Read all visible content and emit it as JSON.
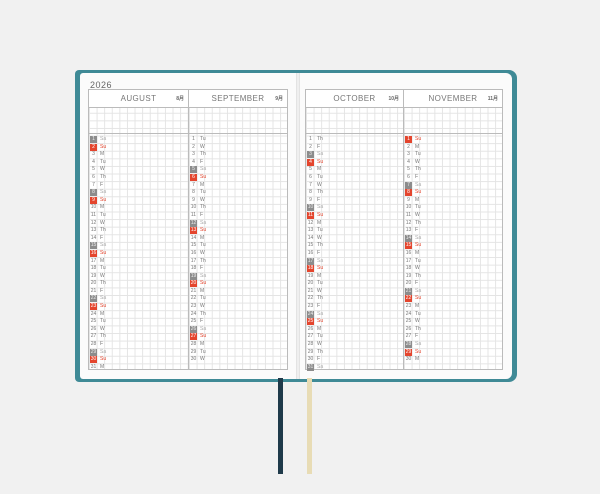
{
  "year": "2026",
  "colors": {
    "cover": "#3f8a96",
    "saturday": "#8c8c8c",
    "sunday": "#e4452d",
    "ribbon_left": "#1f3a4a",
    "ribbon_right": "#e8dcb5"
  },
  "months": [
    {
      "name": "AUGUST",
      "kanji": "8月",
      "days": [
        "Sa",
        "Su",
        "M",
        "Tu",
        "W",
        "Th",
        "F",
        "Sa",
        "Su",
        "M",
        "Tu",
        "W",
        "Th",
        "F",
        "Sa",
        "Su",
        "M",
        "Tu",
        "W",
        "Th",
        "F",
        "Sa",
        "Su",
        "M",
        "Tu",
        "W",
        "Th",
        "F",
        "Sa",
        "Su",
        "M"
      ]
    },
    {
      "name": "SEPTEMBER",
      "kanji": "9月",
      "days": [
        "Tu",
        "W",
        "Th",
        "F",
        "Sa",
        "Su",
        "M",
        "Tu",
        "W",
        "Th",
        "F",
        "Sa",
        "Su",
        "M",
        "Tu",
        "W",
        "Th",
        "F",
        "Sa",
        "Su",
        "M",
        "Tu",
        "W",
        "Th",
        "F",
        "Sa",
        "Su",
        "M",
        "Tu",
        "W"
      ]
    },
    {
      "name": "OCTOBER",
      "kanji": "10月",
      "days": [
        "Th",
        "F",
        "Sa",
        "Su",
        "M",
        "Tu",
        "W",
        "Th",
        "F",
        "Sa",
        "Su",
        "M",
        "Tu",
        "W",
        "Th",
        "F",
        "Sa",
        "Su",
        "M",
        "Tu",
        "W",
        "Th",
        "F",
        "Sa",
        "Su",
        "M",
        "Tu",
        "W",
        "Th",
        "F",
        "Sa"
      ]
    },
    {
      "name": "NOVEMBER",
      "kanji": "11月",
      "days": [
        "Su",
        "M",
        "Tu",
        "W",
        "Th",
        "F",
        "Sa",
        "Su",
        "M",
        "Tu",
        "W",
        "Th",
        "F",
        "Sa",
        "Su",
        "M",
        "Tu",
        "W",
        "Th",
        "F",
        "Sa",
        "Su",
        "M",
        "Tu",
        "W",
        "Th",
        "F",
        "Sa",
        "Su",
        "M"
      ]
    }
  ]
}
